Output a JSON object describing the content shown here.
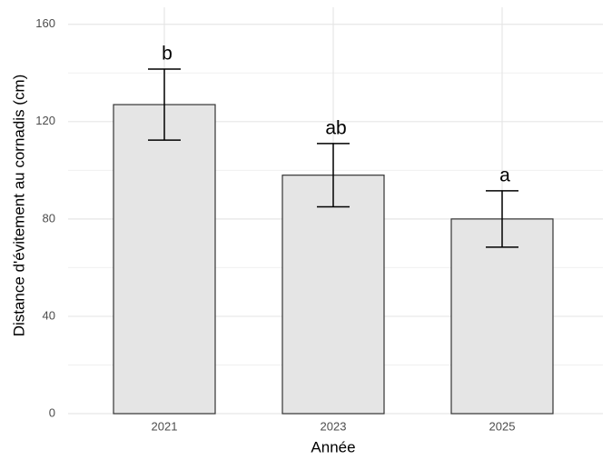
{
  "chart_data": {
    "type": "bar",
    "x_label": "Année",
    "y_label": "Distance d'évitement au cornadis (cm)",
    "categories": [
      "2021",
      "2023",
      "2025"
    ],
    "values": [
      127,
      98,
      80
    ],
    "errors": [
      14.6,
      13,
      11.6
    ],
    "letters": [
      "b",
      "ab",
      "a"
    ],
    "color": "#e5e5e5",
    "ylim": [
      0,
      167
    ],
    "yticks": [
      0,
      40,
      80,
      120,
      160
    ],
    "yminor": [
      20,
      60,
      100,
      140
    ],
    "grid": true
  }
}
